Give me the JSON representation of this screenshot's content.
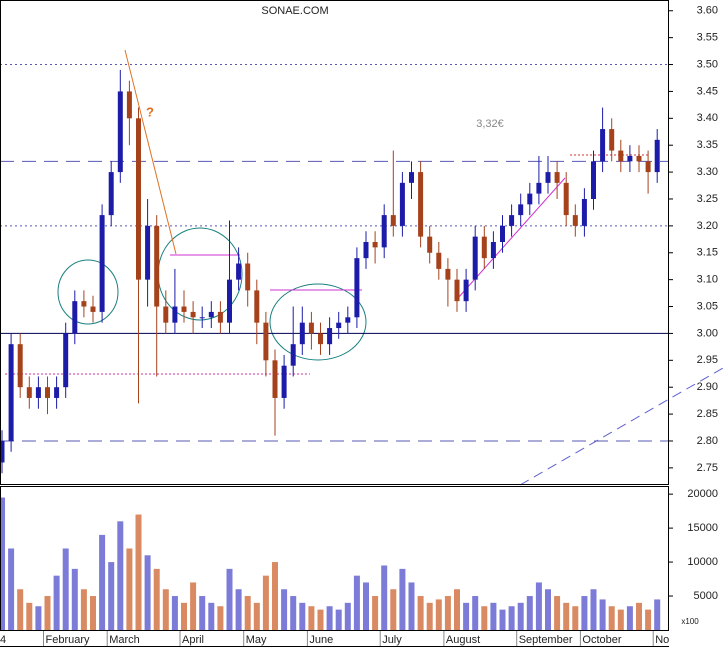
{
  "chart_data": [
    {
      "type": "candlestick",
      "title": "SONAE.COM",
      "up_color": "#1c1ca8",
      "down_color": "#a5421c",
      "open": [
        2.76,
        2.8,
        2.98,
        2.9,
        2.88,
        2.9,
        2.88,
        2.9,
        3.0,
        3.06,
        3.05,
        3.04,
        3.22,
        3.3,
        3.45,
        3.4,
        3.1,
        3.2,
        3.05,
        3.02,
        3.05,
        3.04,
        3.03,
        3.03,
        3.04,
        3.02,
        3.1,
        3.13,
        3.08,
        3.02,
        2.95,
        2.88,
        2.94,
        2.98,
        3.02,
        3.0,
        2.98,
        3.01,
        3.02,
        3.03,
        3.14,
        3.17,
        3.16,
        3.22,
        3.2,
        3.28,
        3.3,
        3.18,
        3.15,
        3.12,
        3.1,
        3.06,
        3.1,
        3.18,
        3.14,
        3.17,
        3.2,
        3.22,
        3.24,
        3.26,
        3.28,
        3.3,
        3.28,
        3.22,
        3.2,
        3.25,
        3.32,
        3.38,
        3.34,
        3.32,
        3.33,
        3.32,
        3.3
      ],
      "high": [
        2.82,
        3.0,
        3.0,
        2.92,
        2.92,
        2.92,
        2.92,
        3.02,
        3.08,
        3.08,
        3.07,
        3.24,
        3.32,
        3.49,
        3.47,
        3.42,
        3.25,
        3.22,
        3.08,
        3.12,
        3.08,
        3.06,
        3.05,
        3.06,
        3.06,
        3.21,
        3.16,
        3.15,
        3.1,
        3.04,
        2.97,
        2.96,
        3.05,
        3.05,
        3.04,
        3.02,
        3.03,
        3.04,
        3.05,
        3.16,
        3.19,
        3.19,
        3.24,
        3.34,
        3.3,
        3.32,
        3.32,
        3.2,
        3.17,
        3.14,
        3.12,
        3.12,
        3.2,
        3.2,
        3.19,
        3.22,
        3.24,
        3.26,
        3.28,
        3.33,
        3.33,
        3.32,
        3.3,
        3.24,
        3.27,
        3.34,
        3.42,
        3.4,
        3.36,
        3.35,
        3.35,
        3.34,
        3.38
      ],
      "low": [
        2.74,
        2.78,
        2.88,
        2.86,
        2.86,
        2.85,
        2.86,
        2.88,
        2.98,
        3.03,
        3.02,
        3.02,
        3.2,
        3.28,
        3.35,
        2.87,
        3.05,
        2.92,
        3.0,
        3.0,
        3.02,
        3.0,
        3.01,
        3.01,
        3.0,
        3.0,
        3.08,
        3.05,
        2.98,
        2.92,
        2.81,
        2.86,
        2.92,
        2.96,
        2.97,
        2.96,
        2.96,
        2.99,
        3.0,
        3.01,
        3.12,
        3.13,
        3.14,
        3.18,
        3.18,
        3.25,
        3.16,
        3.13,
        3.1,
        3.05,
        3.04,
        3.04,
        3.08,
        3.12,
        3.12,
        3.15,
        3.18,
        3.2,
        3.22,
        3.24,
        3.26,
        3.25,
        3.2,
        3.18,
        3.18,
        3.23,
        3.3,
        3.32,
        3.3,
        3.3,
        3.3,
        3.26,
        3.28
      ],
      "close": [
        2.8,
        2.98,
        2.9,
        2.88,
        2.9,
        2.88,
        2.9,
        3.0,
        3.06,
        3.05,
        3.04,
        3.22,
        3.3,
        3.45,
        3.4,
        3.1,
        3.2,
        3.05,
        3.02,
        3.05,
        3.04,
        3.03,
        3.03,
        3.04,
        3.02,
        3.1,
        3.13,
        3.08,
        3.02,
        2.95,
        2.88,
        2.94,
        2.98,
        3.02,
        3.0,
        2.98,
        3.01,
        3.02,
        3.03,
        3.14,
        3.17,
        3.16,
        3.22,
        3.2,
        3.28,
        3.3,
        3.18,
        3.15,
        3.12,
        3.1,
        3.06,
        3.1,
        3.18,
        3.14,
        3.17,
        3.2,
        3.22,
        3.24,
        3.26,
        3.28,
        3.3,
        3.28,
        3.22,
        3.2,
        3.25,
        3.32,
        3.38,
        3.34,
        3.32,
        3.33,
        3.32,
        3.3,
        3.36
      ],
      "ylim": [
        2.72,
        3.62
      ],
      "yticks": [
        {
          "value": 2.75,
          "label": "2.75"
        },
        {
          "value": 2.8,
          "label": "2.80"
        },
        {
          "value": 2.85,
          "label": "2.85"
        },
        {
          "value": 2.9,
          "label": "2.90"
        },
        {
          "value": 2.95,
          "label": "2.95"
        },
        {
          "value": 3.0,
          "label": "3.00"
        },
        {
          "value": 3.05,
          "label": "3.05"
        },
        {
          "value": 3.1,
          "label": "3.10"
        },
        {
          "value": 3.15,
          "label": "3.15"
        },
        {
          "value": 3.2,
          "label": "3.20"
        },
        {
          "value": 3.25,
          "label": "3.25"
        },
        {
          "value": 3.3,
          "label": "3.30"
        },
        {
          "value": 3.35,
          "label": "3.35"
        },
        {
          "value": 3.4,
          "label": "3.40"
        },
        {
          "value": 3.45,
          "label": "3.45"
        },
        {
          "value": 3.5,
          "label": "3.50"
        },
        {
          "value": 3.55,
          "label": "3.55"
        },
        {
          "value": 3.6,
          "label": "3.60"
        }
      ],
      "reference_lines": [
        {
          "value": 3.5,
          "style": "dotted",
          "color": "#5a5ab4"
        },
        {
          "value": 3.32,
          "style": "dashed",
          "color": "#5a5ab4"
        },
        {
          "value": 3.2,
          "style": "dotted",
          "color": "#5a5ab4"
        },
        {
          "value": 3.0,
          "style": "solid",
          "color": "#000055"
        },
        {
          "value": 2.8,
          "style": "dashed",
          "color": "#5a5ab4"
        }
      ],
      "annotations": [
        "3,32€",
        "?"
      ]
    },
    {
      "type": "bar",
      "unit_note": "x100",
      "up_color": "#7c7cd8",
      "down_color": "#d98a62",
      "categories": [
        "4",
        null,
        null,
        null,
        null,
        "February",
        null,
        null,
        null,
        null,
        null,
        null,
        "March",
        null,
        null,
        null,
        null,
        null,
        null,
        null,
        "April",
        null,
        null,
        null,
        null,
        null,
        null,
        "May",
        null,
        null,
        null,
        null,
        null,
        null,
        "June",
        null,
        null,
        null,
        null,
        null,
        null,
        null,
        "July",
        null,
        null,
        null,
        null,
        null,
        null,
        "August",
        null,
        null,
        null,
        null,
        null,
        null,
        null,
        "September",
        null,
        null,
        null,
        null,
        null,
        null,
        "October",
        null,
        null,
        null,
        null,
        null,
        null,
        null,
        "No"
      ],
      "values": [
        19500,
        12000,
        6000,
        4000,
        3500,
        5000,
        8000,
        12000,
        9000,
        6000,
        5000,
        14000,
        10000,
        16000,
        12000,
        17000,
        11000,
        9000,
        6000,
        5000,
        4000,
        7000,
        5000,
        4000,
        3500,
        9000,
        6000,
        5000,
        4000,
        8000,
        10000,
        6000,
        5000,
        4000,
        3500,
        3000,
        3500,
        3000,
        4000,
        8000,
        7000,
        5000,
        9500,
        6000,
        9000,
        7000,
        5000,
        4000,
        4500,
        5000,
        6000,
        4000,
        5000,
        3500,
        4000,
        3000,
        3500,
        4000,
        5000,
        7000,
        6000,
        5000,
        4000,
        3500,
        5000,
        6000,
        4500,
        3500,
        3000,
        3500,
        4000,
        3000,
        4500
      ],
      "ylim": [
        0,
        21200
      ],
      "yticks": [
        5000,
        10000,
        15000,
        20000
      ]
    }
  ]
}
